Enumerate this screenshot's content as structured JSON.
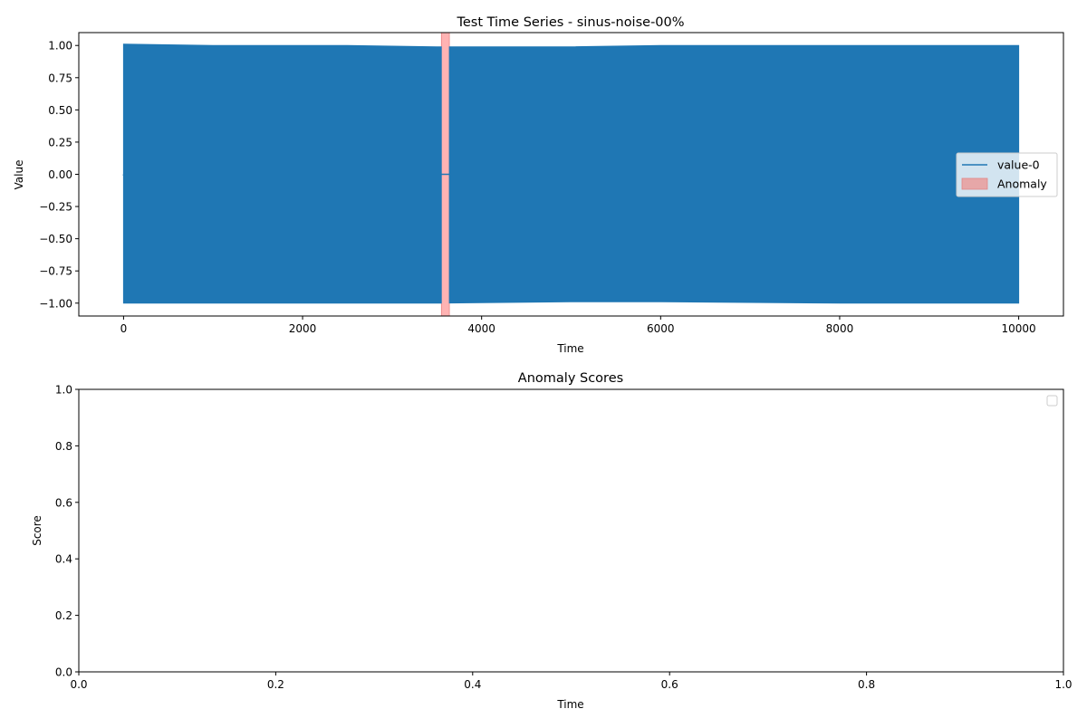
{
  "chart_data": [
    {
      "type": "line",
      "title": "Test Time Series - sinus-noise-00%",
      "xlabel": "Time",
      "ylabel": "Value",
      "xlim": [
        -500,
        10500
      ],
      "ylim": [
        -1.1,
        1.1
      ],
      "x_ticks": [
        0,
        2000,
        4000,
        6000,
        8000,
        10000
      ],
      "x_tick_labels": [
        "0",
        "2000",
        "4000",
        "6000",
        "8000",
        "10000"
      ],
      "y_ticks": [
        1.0,
        0.75,
        0.5,
        0.25,
        0.0,
        -0.25,
        -0.5,
        -0.75,
        -1.0
      ],
      "y_tick_labels": [
        "1.00",
        "0.75",
        "0.50",
        "0.25",
        "0.00",
        "−0.25",
        "−0.50",
        "−0.75",
        "−1.00"
      ],
      "series": [
        {
          "name": "value-0",
          "color": "#1f77b4",
          "x_range": [
            0,
            10000
          ],
          "upper_envelope": [
            [
              0,
              1.01
            ],
            [
              1000,
              1.0
            ],
            [
              2500,
              1.0
            ],
            [
              3500,
              0.99
            ],
            [
              5000,
              0.99
            ],
            [
              6000,
              1.0
            ],
            [
              8000,
              1.0
            ],
            [
              10000,
              1.0
            ]
          ],
          "lower_envelope": [
            [
              0,
              -1.0
            ],
            [
              1000,
              -1.0
            ],
            [
              2500,
              -1.0
            ],
            [
              3500,
              -1.0
            ],
            [
              5000,
              -0.99
            ],
            [
              6000,
              -0.99
            ],
            [
              8000,
              -1.0
            ],
            [
              10000,
              -1.0
            ]
          ],
          "flat_segment": [
            3550,
            3640
          ]
        }
      ],
      "anomaly_regions": [
        [
          3550,
          3640
        ]
      ],
      "anomaly_color": "#ff9999",
      "legend": {
        "position": "center-right",
        "entries": [
          {
            "label": "value-0",
            "kind": "line",
            "color": "#1f77b4"
          },
          {
            "label": "Anomaly",
            "kind": "patch",
            "color": "#e8a0a0"
          }
        ]
      },
      "grid": false
    },
    {
      "type": "line",
      "title": "Anomaly Scores",
      "xlabel": "Time",
      "ylabel": "Score",
      "xlim": [
        0,
        1
      ],
      "ylim": [
        0,
        1
      ],
      "x_ticks": [
        0.0,
        0.2,
        0.4,
        0.6,
        0.8,
        1.0
      ],
      "x_tick_labels": [
        "0.0",
        "0.2",
        "0.4",
        "0.6",
        "0.8",
        "1.0"
      ],
      "y_ticks": [
        0.0,
        0.2,
        0.4,
        0.6,
        0.8,
        1.0
      ],
      "y_tick_labels": [
        "0.0",
        "0.2",
        "0.4",
        "0.6",
        "0.8",
        "1.0"
      ],
      "series": [],
      "legend": {
        "position": "top-right",
        "entries": []
      },
      "grid": false
    }
  ]
}
